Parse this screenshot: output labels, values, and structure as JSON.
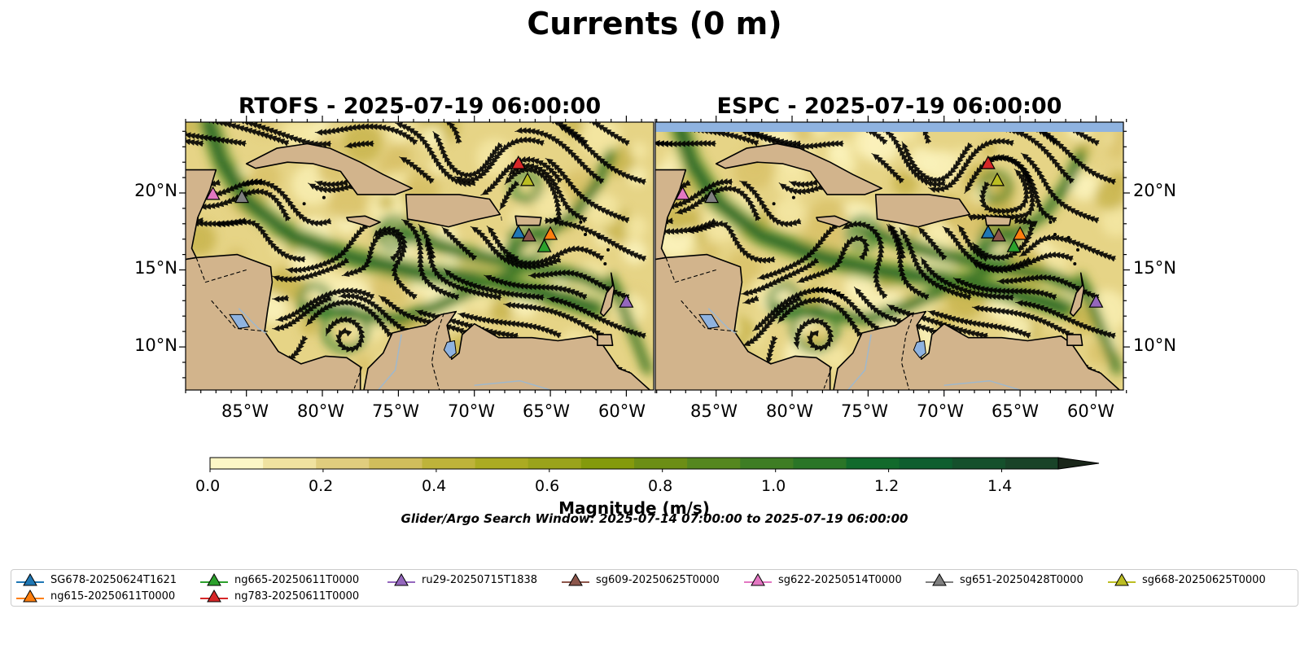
{
  "figure": {
    "title": "Currents (0 m)",
    "panels": [
      {
        "title": "RTOFS - 2025-07-19 06:00:00",
        "ylabels_side": "left"
      },
      {
        "title": "ESPC - 2025-07-19 06:00:00",
        "ylabels_side": "right"
      }
    ],
    "lon_ticks": [
      "85°W",
      "80°W",
      "75°W",
      "70°W",
      "65°W",
      "60°W"
    ],
    "lat_ticks": [
      "20°N",
      "15°N",
      "10°N"
    ],
    "extent": {
      "lon_min": -89,
      "lon_max": -58.2,
      "lat_min": 7.2,
      "lat_max": 24.6
    },
    "colors": {
      "land": "#d2b48c",
      "low_speed": "#fdf5c0",
      "high_speed": "#0b5228",
      "water_inland": "#8fb3e0",
      "streamline": "#000000"
    }
  },
  "colorbar": {
    "label": "Magnitude (m/s)",
    "ticks": [
      "0.0",
      "0.2",
      "0.4",
      "0.6",
      "0.8",
      "1.0",
      "1.2",
      "1.4"
    ],
    "tick_values": [
      0.0,
      0.2,
      0.4,
      0.6,
      0.8,
      1.0,
      1.2,
      1.4
    ],
    "range": [
      0,
      1.5
    ],
    "extend": "max",
    "bins": [
      "#fcf6c6",
      "#f0e2a0",
      "#e0cd7e",
      "#d0bd5c",
      "#beb33a",
      "#abab22",
      "#9aa31b",
      "#849a0c",
      "#6c8e15",
      "#55871f",
      "#3e7d24",
      "#2a7527",
      "#126a2c",
      "#0e5e2f",
      "#15502c",
      "#194328",
      "#1e3622"
    ],
    "arrow_color": "#1a261a"
  },
  "search_window": "Glider/Argo Search Window: 2025-07-14 07:00:00 to 2025-07-19 06:00:00",
  "platforms": [
    {
      "name": "SG678-20250624T1621",
      "color": "#1f77b4",
      "lon": -67.1,
      "lat": 17.4
    },
    {
      "name": "ng615-20250611T0000",
      "color": "#ff7f0e",
      "lon": -65.0,
      "lat": 17.3
    },
    {
      "name": "ng665-20250611T0000",
      "color": "#2ca02c",
      "lon": -65.4,
      "lat": 16.5
    },
    {
      "name": "ng783-20250611T0000",
      "color": "#d62728",
      "lon": -67.1,
      "lat": 21.9
    },
    {
      "name": "ru29-20250715T1838",
      "color": "#9467bd",
      "lon": -60.0,
      "lat": 12.9
    },
    {
      "name": "sg609-20250625T0000",
      "color": "#8c564b",
      "lon": -66.4,
      "lat": 17.2
    },
    {
      "name": "sg622-20250514T0000",
      "color": "#e377c2",
      "lon": -87.2,
      "lat": 19.9
    },
    {
      "name": "sg651-20250428T0000",
      "color": "#7f7f7f",
      "lon": -85.3,
      "lat": 19.7
    },
    {
      "name": "sg668-20250625T0000",
      "color": "#bcbd22",
      "lon": -66.5,
      "lat": 20.8
    }
  ]
}
